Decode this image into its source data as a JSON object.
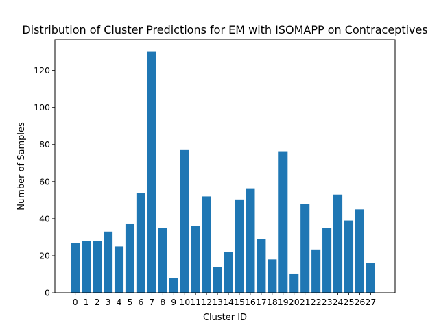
{
  "chart_data": {
    "type": "bar",
    "title": "Distribution of Cluster Predictions for EM with ISOMAPP on Contraceptives",
    "xlabel": "Cluster ID",
    "ylabel": "Number of Samples",
    "categories": [
      "0",
      "1",
      "2",
      "3",
      "4",
      "5",
      "6",
      "7",
      "8",
      "9",
      "10",
      "11",
      "12",
      "13",
      "14",
      "15",
      "16",
      "17",
      "18",
      "19",
      "20",
      "21",
      "22",
      "23",
      "24",
      "25",
      "26",
      "27"
    ],
    "values": [
      27,
      28,
      28,
      33,
      25,
      37,
      54,
      130,
      35,
      8,
      77,
      36,
      52,
      14,
      22,
      50,
      56,
      29,
      18,
      76,
      10,
      48,
      23,
      35,
      53,
      39,
      45,
      16
    ],
    "ylim": [
      0,
      136.5
    ],
    "yticks": [
      0,
      20,
      40,
      60,
      80,
      100,
      120
    ],
    "bar_color": "#1f77b4",
    "grid": false,
    "legend": "none"
  }
}
